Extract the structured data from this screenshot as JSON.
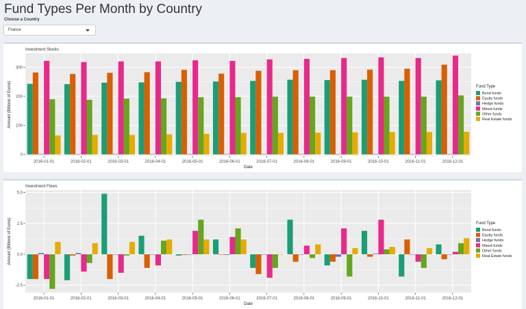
{
  "page": {
    "title": "Fund Types Per Month by Country",
    "country_label": "Choose a Country",
    "country_value": "France"
  },
  "colors": {
    "Bond funds": "#1b9e77",
    "Equity funds": "#d95f02",
    "Hedge funds": "#7570b3",
    "Mixed funds": "#e7298a",
    "Other funds": "#66a61e",
    "Real Estate funds": "#e6ab02"
  },
  "chart_data": [
    {
      "type": "bar",
      "title": "Investment Stocks",
      "xlabel": "Date",
      "ylabel": "Amount (Billions of Euros)",
      "legend_title": "Fund Type",
      "legend_position": "right",
      "grid": true,
      "ylim": [
        -5,
        348
      ],
      "yticks": [
        0,
        100,
        200,
        300
      ],
      "ytick_labels": [
        "0",
        "100",
        "200",
        "300"
      ],
      "categories": [
        "2016-01-01",
        "2016-02-01",
        "2016-03-01",
        "2016-04-01",
        "2016-05-01",
        "2016-06-01",
        "2016-07-01",
        "2016-08-01",
        "2016-09-01",
        "2016-10-01",
        "2016-11-01",
        "2016-12-01"
      ],
      "series": [
        {
          "name": "Bond funds",
          "values": [
            243,
            242,
            247,
            248,
            250,
            251,
            253,
            257,
            256,
            257,
            253,
            255
          ]
        },
        {
          "name": "Equity funds",
          "values": [
            282,
            277,
            281,
            283,
            291,
            278,
            288,
            290,
            290,
            292,
            295,
            309
          ]
        },
        {
          "name": "Hedge funds",
          "values": [
            1,
            1,
            1,
            1,
            1,
            1,
            1,
            1,
            1,
            1,
            1,
            1
          ]
        },
        {
          "name": "Mixed funds",
          "values": [
            322,
            318,
            320,
            320,
            324,
            322,
            327,
            329,
            332,
            334,
            332,
            340
          ]
        },
        {
          "name": "Other funds",
          "values": [
            190,
            188,
            192,
            193,
            197,
            197,
            199,
            199,
            199,
            199,
            199,
            203
          ]
        },
        {
          "name": "Real Estate funds",
          "values": [
            65,
            67,
            67,
            69,
            71,
            74,
            74,
            75,
            76,
            77,
            77,
            78
          ]
        }
      ]
    },
    {
      "type": "bar",
      "title": "Investment Flows",
      "xlabel": "Date",
      "ylabel": "Amount (Billions of Euros)",
      "legend_title": "Fund Type",
      "legend_position": "right",
      "grid": true,
      "ylim": [
        -3.1,
        5.2
      ],
      "yticks": [
        -2.5,
        0,
        2.5,
        5
      ],
      "ytick_labels": [
        "-2.5",
        "0.0",
        "2.5",
        "5.0"
      ],
      "categories": [
        "2016-01-01",
        "2016-02-01",
        "2016-03-01",
        "2016-04-01",
        "2016-05-01",
        "2016-06-01",
        "2016-07-01",
        "2016-08-01",
        "2016-09-01",
        "2016-10-01",
        "2016-11-01",
        "2016-12-01"
      ],
      "series": [
        {
          "name": "Bond funds",
          "values": [
            -2.0,
            -2.1,
            4.9,
            1.5,
            -0.1,
            1.2,
            -1.1,
            2.8,
            -0.9,
            1.9,
            -1.8,
            0.8
          ]
        },
        {
          "name": "Equity funds",
          "values": [
            -2.0,
            -0.1,
            -2.0,
            -1.1,
            -0.05,
            0.0,
            -1.6,
            -0.6,
            -0.6,
            -0.2,
            1.2,
            -0.4
          ]
        },
        {
          "name": "Hedge funds",
          "values": [
            0.1,
            0.1,
            0.0,
            0.0,
            0.0,
            -0.05,
            0.0,
            0.0,
            -0.2,
            0.05,
            0.0,
            0.0
          ]
        },
        {
          "name": "Mixed funds",
          "values": [
            -2.0,
            -1.4,
            -1.5,
            -0.9,
            1.9,
            1.4,
            -1.9,
            0.7,
            2.1,
            2.8,
            -0.6,
            0.2
          ]
        },
        {
          "name": "Other funds",
          "values": [
            -2.8,
            -0.7,
            -0.1,
            1.1,
            2.8,
            2.1,
            -1.1,
            -0.3,
            -1.8,
            0.4,
            -1.1,
            0.9
          ]
        },
        {
          "name": "Real Estate funds",
          "values": [
            1.0,
            0.9,
            1.0,
            1.2,
            1.2,
            1.2,
            0.0,
            0.8,
            0.5,
            0.6,
            0.5,
            1.3
          ]
        }
      ]
    }
  ]
}
